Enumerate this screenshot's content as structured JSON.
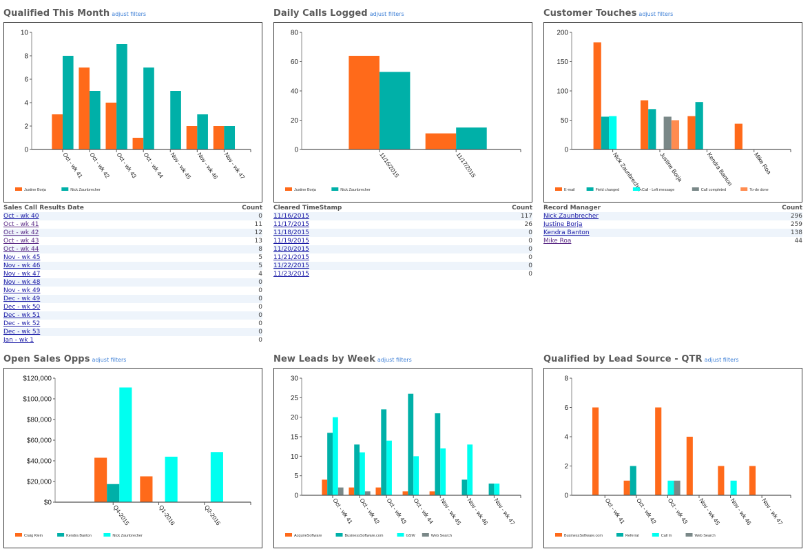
{
  "common": {
    "adjust_label": "adjust filters"
  },
  "colors": {
    "orange": "#ff6a1a",
    "teal": "#00b0a8",
    "cyan": "#00fff0",
    "gray": "#7a8888",
    "salmon": "#ff8c50"
  },
  "panels": [
    {
      "title": "Qualified This Month",
      "chart_data": {
        "type": "bar",
        "title": "Qualified This Month",
        "categories": [
          "Oct - wk 41",
          "Oct - wk 42",
          "Oct - wk 43",
          "Oct - wk 44",
          "Nov - wk 45",
          "Nov - wk 46",
          "Nov - wk 47"
        ],
        "series": [
          {
            "name": "Justine Borja",
            "color": "#ff6a1a",
            "values": [
              3,
              7,
              4,
              1,
              0,
              2,
              2
            ]
          },
          {
            "name": "Nick Zaunbrecher",
            "color": "#00b0a8",
            "values": [
              8,
              5,
              9,
              7,
              5,
              3,
              2
            ]
          }
        ],
        "ylim": [
          0,
          10
        ],
        "yticks": [
          0,
          2,
          4,
          6,
          8,
          10
        ],
        "ytick_labels": [
          "0",
          "2",
          "4",
          "6",
          "8",
          "10"
        ],
        "xlabel": "",
        "ylabel": "",
        "legend": "bottom-left",
        "grid": false
      }
    },
    {
      "title": "Daily Calls Logged",
      "chart_data": {
        "type": "bar",
        "title": "Daily Calls Logged",
        "categories": [
          "11/16/2015",
          "11/17/2015"
        ],
        "series": [
          {
            "name": "Justine Borja",
            "color": "#ff6a1a",
            "values": [
              64,
              11
            ]
          },
          {
            "name": "Nick Zaunbrecher",
            "color": "#00b0a8",
            "values": [
              53,
              15
            ]
          }
        ],
        "ylim": [
          0,
          80
        ],
        "yticks": [
          0,
          20,
          40,
          60,
          80
        ],
        "ytick_labels": [
          "0",
          "20",
          "40",
          "60",
          "80"
        ],
        "xlabel": "",
        "ylabel": "",
        "legend": "bottom-left",
        "grid": false
      }
    },
    {
      "title": "Customer Touches",
      "chart_data": {
        "type": "bar",
        "title": "Customer Touches",
        "categories": [
          "Nick Zaunbrecher",
          "Justine Borja",
          "Kendra Banton",
          "Mike Roa"
        ],
        "series": [
          {
            "name": "E-mail",
            "color": "#ff6a1a",
            "values": [
              183,
              84,
              57,
              44
            ]
          },
          {
            "name": "Field changed",
            "color": "#00b0a8",
            "values": [
              56,
              69,
              81,
              0
            ]
          },
          {
            "name": "Call - Left message",
            "color": "#00fff0",
            "values": [
              57,
              0,
              0,
              0
            ]
          },
          {
            "name": "Call completed",
            "color": "#7a8888",
            "values": [
              0,
              56,
              0,
              0
            ]
          },
          {
            "name": "To-do done",
            "color": "#ff8c50",
            "values": [
              0,
              50,
              0,
              0
            ]
          }
        ],
        "ylim": [
          0,
          200
        ],
        "yticks": [
          0,
          50,
          100,
          150,
          200
        ],
        "ytick_labels": [
          "0",
          "50",
          "100",
          "150",
          "200"
        ],
        "xlabel": "",
        "ylabel": "",
        "legend": "bottom-left",
        "grid": false
      }
    },
    {
      "title": "Open Sales Opps",
      "chart_data": {
        "type": "bar",
        "title": "Open Sales Opps",
        "categories": [
          "Q4-2015",
          "Q1-2016",
          "Q2-2016"
        ],
        "series": [
          {
            "name": "Craig Klein",
            "color": "#ff6a1a",
            "values": [
              43000,
              25000,
              0
            ]
          },
          {
            "name": "Kendra Banton",
            "color": "#00b0a8",
            "values": [
              17500,
              0,
              0
            ]
          },
          {
            "name": "Nick Zaunbrecher",
            "color": "#00fff0",
            "values": [
              111000,
              44000,
              48500
            ]
          }
        ],
        "ylim": [
          0,
          120000
        ],
        "yticks": [
          0,
          20000,
          40000,
          60000,
          80000,
          100000,
          120000
        ],
        "ytick_labels": [
          "$0",
          "$20,000",
          "$40,000",
          "$60,000",
          "$80,000",
          "$100,000",
          "$120,000"
        ],
        "xlabel": "",
        "ylabel": "",
        "legend": "bottom-left",
        "grid": false
      }
    },
    {
      "title": "New Leads by Week",
      "chart_data": {
        "type": "bar",
        "title": "New Leads by Week",
        "categories": [
          "Oct - wk 41",
          "Oct - wk 42",
          "Oct - wk 43",
          "Oct - wk 44",
          "Nov - wk 45",
          "Nov - wk 46",
          "Nov - wk 47"
        ],
        "series": [
          {
            "name": "AcquireSoftware",
            "color": "#ff6a1a",
            "values": [
              4,
              2,
              2,
              1,
              1,
              0,
              0
            ]
          },
          {
            "name": "BusinessSoftware.com",
            "color": "#00b0a8",
            "values": [
              16,
              13,
              22,
              26,
              21,
              4,
              3
            ]
          },
          {
            "name": "GSW",
            "color": "#00fff0",
            "values": [
              20,
              11,
              14,
              10,
              12,
              13,
              3
            ]
          },
          {
            "name": "Web Search",
            "color": "#7a8888",
            "values": [
              2,
              1,
              0,
              0,
              0,
              0,
              0
            ]
          }
        ],
        "ylim": [
          0,
          30
        ],
        "yticks": [
          0,
          5,
          10,
          15,
          20,
          25,
          30
        ],
        "ytick_labels": [
          "0",
          "5",
          "10",
          "15",
          "20",
          "25",
          "30"
        ],
        "xlabel": "",
        "ylabel": "",
        "legend": "bottom-left",
        "grid": false
      }
    },
    {
      "title": "Qualified by Lead Source - QTR",
      "chart_data": {
        "type": "bar",
        "title": "Qualified by Lead Source - QTR",
        "categories": [
          "Oct - wk 41",
          "Oct - wk 42",
          "Oct - wk 43",
          "Nov - wk 45",
          "Nov - wk 46",
          "Nov - wk 47"
        ],
        "series": [
          {
            "name": "BusinessSoftware.com",
            "color": "#ff6a1a",
            "values": [
              6,
              1,
              6,
              4,
              2,
              2
            ]
          },
          {
            "name": "Referral",
            "color": "#00b0a8",
            "values": [
              0,
              2,
              0,
              0,
              0,
              0
            ]
          },
          {
            "name": "Call In",
            "color": "#00fff0",
            "values": [
              0,
              0,
              1,
              0,
              1,
              0
            ]
          },
          {
            "name": "Web Search",
            "color": "#7a8888",
            "values": [
              0,
              0,
              1,
              0,
              0,
              0
            ]
          }
        ],
        "ylim": [
          0,
          8
        ],
        "yticks": [
          0,
          2,
          4,
          6,
          8
        ],
        "ytick_labels": [
          "0",
          "2",
          "4",
          "6",
          "8"
        ],
        "xlabel": "",
        "ylabel": "",
        "legend": "bottom-left",
        "grid": false
      }
    }
  ],
  "tables": [
    {
      "headers": [
        "Sales Call Results Date",
        "Count"
      ],
      "rows": [
        {
          "label": "Oct - wk 40",
          "count": "0",
          "visited": false
        },
        {
          "label": "Oct - wk 41",
          "count": "11",
          "visited": true
        },
        {
          "label": "Oct - wk 42",
          "count": "12",
          "visited": true
        },
        {
          "label": "Oct - wk 43",
          "count": "13",
          "visited": true
        },
        {
          "label": "Oct - wk 44",
          "count": "8",
          "visited": true
        },
        {
          "label": "Nov - wk 45",
          "count": "5",
          "visited": false
        },
        {
          "label": "Nov - wk 46",
          "count": "5",
          "visited": false
        },
        {
          "label": "Nov - wk 47",
          "count": "4",
          "visited": false
        },
        {
          "label": "Nov - wk 48",
          "count": "0",
          "visited": false
        },
        {
          "label": "Nov - wk 49",
          "count": "0",
          "visited": false
        },
        {
          "label": "Dec - wk 49",
          "count": "0",
          "visited": false
        },
        {
          "label": "Dec - wk 50",
          "count": "0",
          "visited": false
        },
        {
          "label": "Dec - wk 51",
          "count": "0",
          "visited": false
        },
        {
          "label": "Dec - wk 52",
          "count": "0",
          "visited": false
        },
        {
          "label": "Dec - wk 53",
          "count": "0",
          "visited": false
        },
        {
          "label": "Jan - wk 1",
          "count": "0",
          "visited": false
        }
      ]
    },
    {
      "headers": [
        "Cleared TimeStamp",
        "Count"
      ],
      "rows": [
        {
          "label": "11/16/2015",
          "count": "117",
          "visited": false
        },
        {
          "label": "11/17/2015",
          "count": "26",
          "visited": false
        },
        {
          "label": "11/18/2015",
          "count": "0",
          "visited": false
        },
        {
          "label": "11/19/2015",
          "count": "0",
          "visited": false
        },
        {
          "label": "11/20/2015",
          "count": "0",
          "visited": false
        },
        {
          "label": "11/21/2015",
          "count": "0",
          "visited": false
        },
        {
          "label": "11/22/2015",
          "count": "0",
          "visited": false
        },
        {
          "label": "11/23/2015",
          "count": "0",
          "visited": false
        }
      ]
    },
    {
      "headers": [
        "Record Manager",
        "Count"
      ],
      "rows": [
        {
          "label": "Nick Zaunbrecher",
          "count": "296",
          "visited": false
        },
        {
          "label": "Justine Borja",
          "count": "259",
          "visited": false
        },
        {
          "label": "Kendra Banton",
          "count": "138",
          "visited": false
        },
        {
          "label": "Mike Roa",
          "count": "44",
          "visited": true
        }
      ]
    }
  ]
}
